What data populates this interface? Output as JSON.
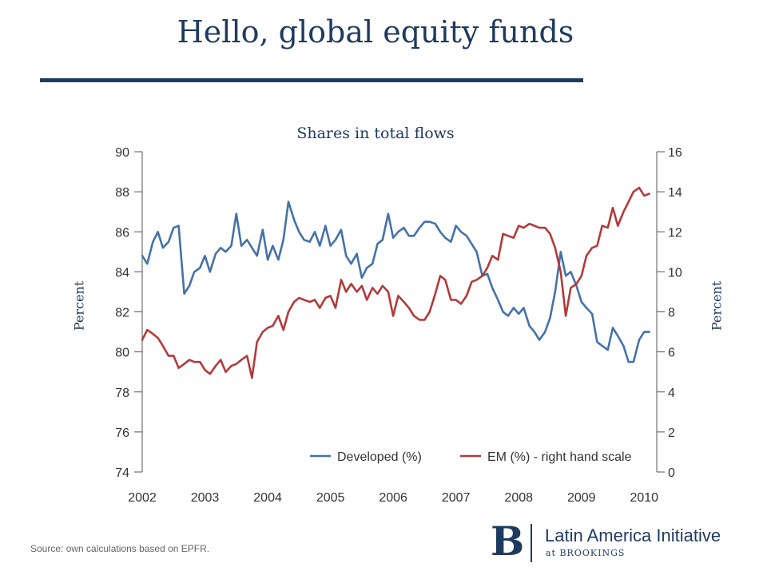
{
  "slide": {
    "title": "Hello, global equity funds",
    "source": "Source: own calculations based on EPFR."
  },
  "logo": {
    "letter": "B",
    "name": "Latin America Initiative",
    "sub": "at BROOKINGS"
  },
  "colors": {
    "developed": "#4472a8",
    "em": "#b23a3a",
    "title": "#1f3a5f"
  },
  "chart_data": {
    "type": "line",
    "title": "Shares in total flows",
    "ylabel_left": "Percent",
    "ylabel_right": "Percent",
    "xlim": [
      2002,
      2010.2
    ],
    "ylim_left": [
      74,
      90
    ],
    "ylim_right": [
      0,
      16
    ],
    "xticks": [
      2002,
      2003,
      2004,
      2005,
      2006,
      2007,
      2008,
      2009,
      2010
    ],
    "yticks_left": [
      74,
      76,
      78,
      80,
      82,
      84,
      86,
      88,
      90
    ],
    "yticks_right": [
      0,
      2,
      4,
      6,
      8,
      10,
      12,
      14,
      16
    ],
    "grid": false,
    "legend_position": "bottom",
    "series": [
      {
        "name": "Developed (%)",
        "axis": "left",
        "x": [
          2002.0,
          2002.08,
          2002.17,
          2002.25,
          2002.33,
          2002.42,
          2002.5,
          2002.58,
          2002.67,
          2002.75,
          2002.83,
          2002.92,
          2003.0,
          2003.08,
          2003.17,
          2003.25,
          2003.33,
          2003.42,
          2003.5,
          2003.58,
          2003.67,
          2003.75,
          2003.83,
          2003.92,
          2004.0,
          2004.08,
          2004.17,
          2004.25,
          2004.33,
          2004.42,
          2004.5,
          2004.58,
          2004.67,
          2004.75,
          2004.83,
          2004.92,
          2005.0,
          2005.08,
          2005.17,
          2005.25,
          2005.33,
          2005.42,
          2005.5,
          2005.58,
          2005.67,
          2005.75,
          2005.83,
          2005.92,
          2006.0,
          2006.08,
          2006.17,
          2006.25,
          2006.33,
          2006.42,
          2006.5,
          2006.58,
          2006.67,
          2006.75,
          2006.83,
          2006.92,
          2007.0,
          2007.08,
          2007.17,
          2007.25,
          2007.33,
          2007.42,
          2007.5,
          2007.58,
          2007.67,
          2007.75,
          2007.83,
          2007.92,
          2008.0,
          2008.08,
          2008.17,
          2008.25,
          2008.33,
          2008.42,
          2008.5,
          2008.58,
          2008.67,
          2008.75,
          2008.83,
          2008.92,
          2009.0,
          2009.08,
          2009.17,
          2009.25,
          2009.33,
          2009.42,
          2009.5,
          2009.58,
          2009.67,
          2009.75,
          2009.83,
          2009.92,
          2010.0,
          2010.08
        ],
        "values": [
          84.8,
          84.4,
          85.5,
          86.0,
          85.2,
          85.5,
          86.2,
          86.3,
          82.9,
          83.3,
          84.0,
          84.2,
          84.8,
          84.0,
          84.9,
          85.2,
          85.0,
          85.3,
          86.9,
          85.3,
          85.6,
          85.2,
          84.8,
          86.1,
          84.6,
          85.3,
          84.6,
          85.6,
          87.5,
          86.6,
          86.0,
          85.6,
          85.5,
          86.0,
          85.3,
          86.3,
          85.3,
          85.6,
          86.1,
          84.8,
          84.4,
          84.9,
          83.7,
          84.2,
          84.4,
          85.4,
          85.6,
          86.9,
          85.7,
          86.0,
          86.2,
          85.8,
          85.8,
          86.2,
          86.5,
          86.5,
          86.4,
          86.0,
          85.7,
          85.5,
          86.3,
          86.0,
          85.8,
          85.4,
          85.0,
          83.8,
          83.9,
          83.2,
          82.6,
          82.0,
          81.8,
          82.2,
          81.9,
          82.2,
          81.3,
          81.0,
          80.6,
          81.0,
          81.7,
          83.0,
          85.0,
          83.8,
          84.0,
          83.3,
          82.5,
          82.2,
          81.9,
          80.5,
          80.3,
          80.1,
          81.2,
          80.8,
          80.3,
          79.5,
          79.5,
          80.6,
          81.0,
          81.0
        ]
      },
      {
        "name": "EM (%) - right hand scale",
        "axis": "right",
        "x": [
          2002.0,
          2002.08,
          2002.17,
          2002.25,
          2002.33,
          2002.42,
          2002.5,
          2002.58,
          2002.67,
          2002.75,
          2002.83,
          2002.92,
          2003.0,
          2003.08,
          2003.17,
          2003.25,
          2003.33,
          2003.42,
          2003.5,
          2003.58,
          2003.67,
          2003.75,
          2003.83,
          2003.92,
          2004.0,
          2004.08,
          2004.17,
          2004.25,
          2004.33,
          2004.42,
          2004.5,
          2004.58,
          2004.67,
          2004.75,
          2004.83,
          2004.92,
          2005.0,
          2005.08,
          2005.17,
          2005.25,
          2005.33,
          2005.42,
          2005.5,
          2005.58,
          2005.67,
          2005.75,
          2005.83,
          2005.92,
          2006.0,
          2006.08,
          2006.17,
          2006.25,
          2006.33,
          2006.42,
          2006.5,
          2006.58,
          2006.67,
          2006.75,
          2006.83,
          2006.92,
          2007.0,
          2007.08,
          2007.17,
          2007.25,
          2007.33,
          2007.42,
          2007.5,
          2007.58,
          2007.67,
          2007.75,
          2007.83,
          2007.92,
          2008.0,
          2008.08,
          2008.17,
          2008.25,
          2008.33,
          2008.42,
          2008.5,
          2008.58,
          2008.67,
          2008.75,
          2008.83,
          2008.92,
          2009.0,
          2009.08,
          2009.17,
          2009.25,
          2009.33,
          2009.42,
          2009.5,
          2009.58,
          2009.67,
          2009.75,
          2009.83,
          2009.92,
          2010.0,
          2010.08
        ],
        "values": [
          6.6,
          7.1,
          6.9,
          6.7,
          6.3,
          5.8,
          5.8,
          5.2,
          5.4,
          5.6,
          5.5,
          5.5,
          5.1,
          4.9,
          5.3,
          5.6,
          5.0,
          5.3,
          5.4,
          5.6,
          5.8,
          4.7,
          6.5,
          7.0,
          7.2,
          7.3,
          7.8,
          7.1,
          8.0,
          8.5,
          8.7,
          8.6,
          8.5,
          8.6,
          8.2,
          8.7,
          8.8,
          8.2,
          9.6,
          9.0,
          9.4,
          9.0,
          9.3,
          8.6,
          9.2,
          8.9,
          9.3,
          9.0,
          7.8,
          8.8,
          8.5,
          8.2,
          7.8,
          7.6,
          7.6,
          8.0,
          8.9,
          9.8,
          9.6,
          8.6,
          8.6,
          8.4,
          8.8,
          9.5,
          9.6,
          9.8,
          10.2,
          10.8,
          10.6,
          11.9,
          11.8,
          11.7,
          12.3,
          12.2,
          12.4,
          12.3,
          12.2,
          12.2,
          11.9,
          11.2,
          10.0,
          7.8,
          9.2,
          9.4,
          9.8,
          10.8,
          11.2,
          11.3,
          12.3,
          12.2,
          13.2,
          12.3,
          13.0,
          13.5,
          14.0,
          14.2,
          13.8,
          13.9
        ]
      }
    ]
  }
}
